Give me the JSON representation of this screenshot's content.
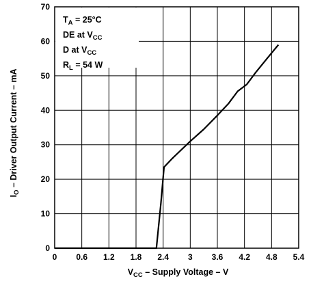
{
  "chart_data": {
    "type": "line",
    "xlabel": {
      "main": "V",
      "sub": "CC",
      "rest": " – Supply Voltage – V"
    },
    "ylabel": {
      "main": "I",
      "sub": "O",
      "rest": " – Driver Output Current – mA"
    },
    "xlim": [
      0,
      5.4
    ],
    "ylim": [
      0,
      70
    ],
    "xticks": [
      0,
      0.6,
      1.2,
      1.8,
      2.4,
      3,
      3.6,
      4.2,
      4.8,
      5.4
    ],
    "xtick_labels": [
      "0",
      "0.6",
      "1.2",
      "1.8",
      "2.4",
      "3",
      "3.6",
      "4.2",
      "4.8",
      "5.4"
    ],
    "yticks": [
      0,
      10,
      20,
      30,
      40,
      50,
      60,
      70
    ],
    "ytick_labels": [
      "0",
      "10",
      "20",
      "30",
      "40",
      "50",
      "60",
      "70"
    ],
    "grid": true,
    "legend_position": "top-left",
    "conditions": [
      {
        "main": "T",
        "sub": "A",
        "rest": " = 25°C"
      },
      {
        "main": "DE at V",
        "sub": "CC",
        "rest": ""
      },
      {
        "main": "D at V",
        "sub": "CC",
        "rest": ""
      },
      {
        "main": "R",
        "sub": "L",
        "rest": " = 54 W"
      }
    ],
    "series": [
      {
        "x": [
          0,
          2.25,
          2.35,
          2.42,
          2.6,
          3.0,
          3.3,
          3.6,
          3.85,
          4.05,
          4.25,
          4.45,
          4.7,
          4.95
        ],
        "y": [
          0,
          0,
          13,
          23.5,
          26,
          31,
          34.5,
          38.5,
          42,
          45.5,
          47.5,
          51,
          55,
          59
        ]
      }
    ],
    "colors": {
      "line": "#000000",
      "grid": "#000000",
      "background": "#ffffff"
    }
  }
}
